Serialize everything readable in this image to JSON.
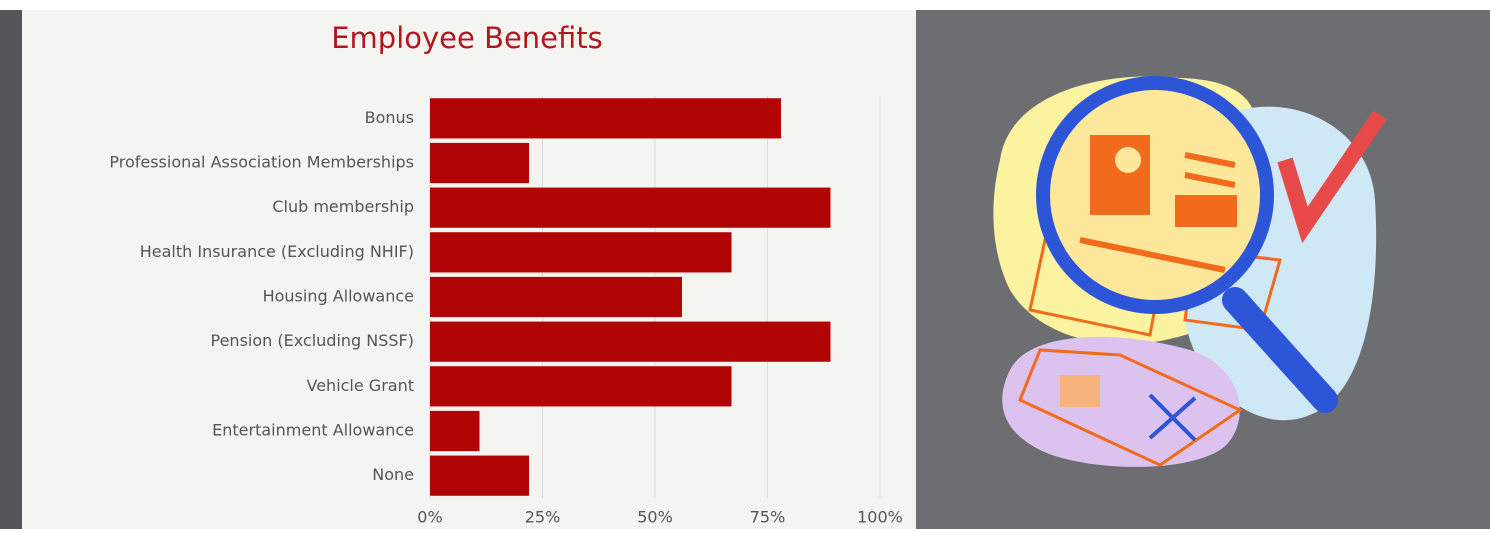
{
  "chart_data": {
    "type": "bar",
    "orientation": "horizontal",
    "title": "Employee Benefits",
    "categories": [
      "Bonus",
      "Professional Association Memberships",
      "Club membership",
      "Health Insurance (Excluding NHIF)",
      "Housing Allowance",
      "Pension (Excluding NSSF)",
      "Vehicle Grant",
      "Entertainment Allowance",
      "None"
    ],
    "values": [
      78,
      22,
      89,
      67,
      56,
      89,
      67,
      11,
      22
    ],
    "color": "#b10505",
    "xlim": [
      0,
      100
    ],
    "xticks": [
      {
        "value": 0,
        "label": "0%"
      },
      {
        "value": 25,
        "label": "25%"
      },
      {
        "value": 50,
        "label": "50%"
      },
      {
        "value": 75,
        "label": "75%"
      },
      {
        "value": 100,
        "label": "100%"
      }
    ],
    "grid": true
  }
}
